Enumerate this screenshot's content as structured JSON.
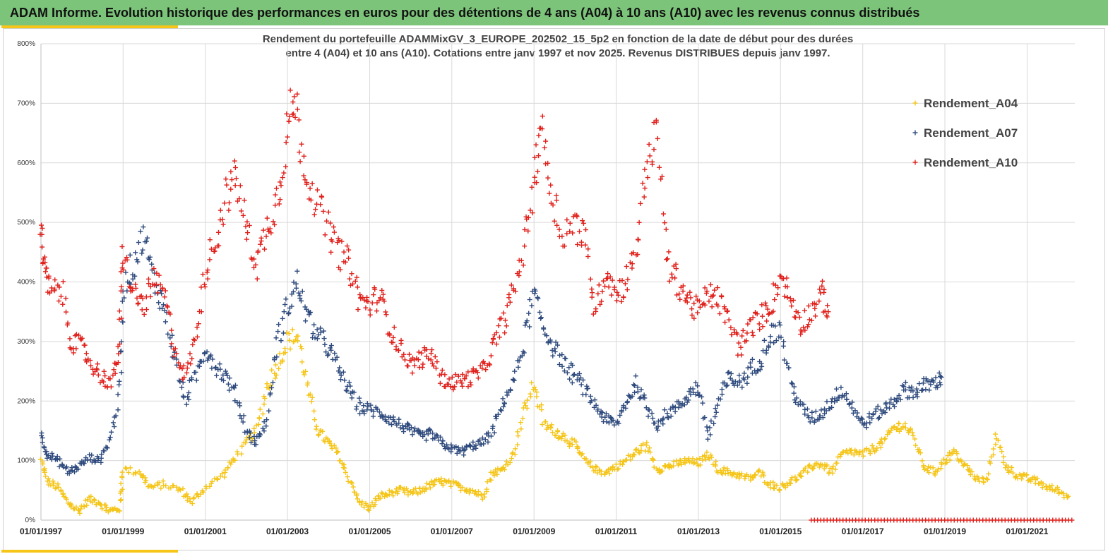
{
  "banner": {
    "title": "ADAM Informe. Evolution historique des performances en euros pour des détentions de 4 ans (A04) à 10 ans (A10) avec les revenus connus distribués"
  },
  "chart_data": {
    "type": "scatter",
    "title_line1": "Rendement du portefeuille ADAMMixGV_3_EUROPE_202502_15_5p2  en fonction de la date de début pour des durées",
    "title_line2": "entre 4 (A04) et 10 ans (A10). Cotations entre janv 1997 et nov 2025. Revenus DISTRIBUES depuis janv 1997.",
    "ylim": [
      0,
      800
    ],
    "y_ticks": [
      "0%",
      "100%",
      "200%",
      "300%",
      "400%",
      "500%",
      "600%",
      "700%",
      "800%"
    ],
    "x_ticks": [
      "01/01/1997",
      "01/01/1999",
      "01/01/2001",
      "01/01/2003",
      "01/01/2005",
      "01/01/2007",
      "01/01/2009",
      "01/01/2011",
      "01/01/2013",
      "01/01/2015",
      "01/01/2017",
      "01/01/2019",
      "01/01/2021"
    ],
    "xlim": [
      "1997-01-01",
      "2022-03-01"
    ],
    "grid": true,
    "legend_position": "top-right",
    "series": [
      {
        "name": "Rendement_A04",
        "color": "#f5c518",
        "points": [
          [
            "1997-01",
            100
          ],
          [
            "1997-03",
            65
          ],
          [
            "1997-06",
            55
          ],
          [
            "1997-09",
            30
          ],
          [
            "1997-12",
            15
          ],
          [
            "1998-03",
            35
          ],
          [
            "1998-06",
            30
          ],
          [
            "1998-09",
            15
          ],
          [
            "1998-12",
            20
          ],
          [
            "1999-01",
            85
          ],
          [
            "1999-06",
            80
          ],
          [
            "1999-09",
            55
          ],
          [
            "2000-01",
            60
          ],
          [
            "2000-06",
            50
          ],
          [
            "2000-09",
            30
          ],
          [
            "2001-01",
            55
          ],
          [
            "2001-06",
            75
          ],
          [
            "2001-09",
            100
          ],
          [
            "2002-01",
            130
          ],
          [
            "2002-04",
            150
          ],
          [
            "2002-07",
            220
          ],
          [
            "2002-10",
            260
          ],
          [
            "2003-01",
            300
          ],
          [
            "2003-04",
            310
          ],
          [
            "2003-07",
            220
          ],
          [
            "2003-10",
            150
          ],
          [
            "2004-01",
            130
          ],
          [
            "2004-04",
            110
          ],
          [
            "2004-07",
            70
          ],
          [
            "2004-10",
            30
          ],
          [
            "2005-01",
            20
          ],
          [
            "2005-04",
            40
          ],
          [
            "2005-07",
            45
          ],
          [
            "2005-10",
            50
          ],
          [
            "2006-01",
            45
          ],
          [
            "2006-04",
            50
          ],
          [
            "2006-07",
            60
          ],
          [
            "2006-10",
            65
          ],
          [
            "2007-01",
            60
          ],
          [
            "2007-04",
            55
          ],
          [
            "2007-07",
            50
          ],
          [
            "2007-10",
            40
          ],
          [
            "2008-01",
            80
          ],
          [
            "2008-04",
            85
          ],
          [
            "2008-07",
            110
          ],
          [
            "2008-10",
            180
          ],
          [
            "2009-01",
            230
          ],
          [
            "2009-04",
            160
          ],
          [
            "2009-07",
            150
          ],
          [
            "2009-10",
            140
          ],
          [
            "2010-01",
            125
          ],
          [
            "2010-04",
            100
          ],
          [
            "2010-07",
            85
          ],
          [
            "2010-10",
            80
          ],
          [
            "2011-01",
            90
          ],
          [
            "2011-04",
            100
          ],
          [
            "2011-07",
            115
          ],
          [
            "2011-10",
            125
          ],
          [
            "2012-01",
            85
          ],
          [
            "2012-04",
            90
          ],
          [
            "2012-07",
            95
          ],
          [
            "2012-10",
            100
          ],
          [
            "2013-01",
            95
          ],
          [
            "2013-04",
            110
          ],
          [
            "2013-07",
            85
          ],
          [
            "2013-10",
            80
          ],
          [
            "2014-01",
            75
          ],
          [
            "2014-04",
            70
          ],
          [
            "2014-07",
            80
          ],
          [
            "2014-10",
            60
          ],
          [
            "2015-01",
            55
          ],
          [
            "2015-04",
            65
          ],
          [
            "2015-07",
            75
          ],
          [
            "2015-10",
            90
          ],
          [
            "2016-01",
            95
          ],
          [
            "2016-04",
            80
          ],
          [
            "2016-07",
            110
          ],
          [
            "2016-10",
            115
          ],
          [
            "2017-01",
            110
          ],
          [
            "2017-04",
            120
          ],
          [
            "2017-07",
            130
          ],
          [
            "2017-10",
            155
          ],
          [
            "2018-01",
            160
          ],
          [
            "2018-04",
            140
          ],
          [
            "2018-07",
            90
          ],
          [
            "2018-10",
            80
          ],
          [
            "2019-01",
            100
          ],
          [
            "2019-04",
            115
          ],
          [
            "2019-07",
            90
          ],
          [
            "2019-10",
            70
          ],
          [
            "2020-01",
            65
          ],
          [
            "2020-04",
            140
          ],
          [
            "2020-07",
            90
          ],
          [
            "2020-10",
            75
          ],
          [
            "2021-01",
            70
          ],
          [
            "2021-04",
            65
          ],
          [
            "2021-07",
            55
          ],
          [
            "2021-10",
            50
          ],
          [
            "2022-01",
            40
          ]
        ]
      },
      {
        "name": "Rendement_A07",
        "color": "#2e4a7d",
        "points": [
          [
            "1997-01",
            145
          ],
          [
            "1997-03",
            110
          ],
          [
            "1997-06",
            100
          ],
          [
            "1997-09",
            80
          ],
          [
            "1997-12",
            90
          ],
          [
            "1998-03",
            105
          ],
          [
            "1998-06",
            100
          ],
          [
            "1998-09",
            130
          ],
          [
            "1998-12",
            210
          ],
          [
            "1999-01",
            390
          ],
          [
            "1999-04",
            430
          ],
          [
            "1999-07",
            480
          ],
          [
            "1999-10",
            400
          ],
          [
            "2000-01",
            360
          ],
          [
            "2000-04",
            280
          ],
          [
            "2000-07",
            200
          ],
          [
            "2000-10",
            240
          ],
          [
            "2001-01",
            290
          ],
          [
            "2001-04",
            260
          ],
          [
            "2001-07",
            240
          ],
          [
            "2001-10",
            210
          ],
          [
            "2002-01",
            150
          ],
          [
            "2002-04",
            130
          ],
          [
            "2002-07",
            170
          ],
          [
            "2002-10",
            300
          ],
          [
            "2003-01",
            360
          ],
          [
            "2003-04",
            400
          ],
          [
            "2003-07",
            340
          ],
          [
            "2003-10",
            310
          ],
          [
            "2004-01",
            290
          ],
          [
            "2004-04",
            250
          ],
          [
            "2004-07",
            220
          ],
          [
            "2004-10",
            190
          ],
          [
            "2005-01",
            185
          ],
          [
            "2005-04",
            180
          ],
          [
            "2005-07",
            170
          ],
          [
            "2005-10",
            160
          ],
          [
            "2006-01",
            150
          ],
          [
            "2006-04",
            140
          ],
          [
            "2006-07",
            145
          ],
          [
            "2006-10",
            130
          ],
          [
            "2007-01",
            120
          ],
          [
            "2007-04",
            115
          ],
          [
            "2007-07",
            125
          ],
          [
            "2007-10",
            130
          ],
          [
            "2008-01",
            150
          ],
          [
            "2008-04",
            200
          ],
          [
            "2008-07",
            230
          ],
          [
            "2008-10",
            300
          ],
          [
            "2009-01",
            380
          ],
          [
            "2009-04",
            320
          ],
          [
            "2009-07",
            290
          ],
          [
            "2009-10",
            260
          ],
          [
            "2010-01",
            240
          ],
          [
            "2010-04",
            220
          ],
          [
            "2010-07",
            190
          ],
          [
            "2010-10",
            170
          ],
          [
            "2011-01",
            160
          ],
          [
            "2011-04",
            200
          ],
          [
            "2011-07",
            230
          ],
          [
            "2011-10",
            190
          ],
          [
            "2012-01",
            160
          ],
          [
            "2012-04",
            180
          ],
          [
            "2012-07",
            190
          ],
          [
            "2012-10",
            210
          ],
          [
            "2013-01",
            225
          ],
          [
            "2013-04",
            140
          ],
          [
            "2013-07",
            200
          ],
          [
            "2013-10",
            240
          ],
          [
            "2014-01",
            230
          ],
          [
            "2014-04",
            250
          ],
          [
            "2014-07",
            270
          ],
          [
            "2014-10",
            310
          ],
          [
            "2015-01",
            320
          ],
          [
            "2015-04",
            230
          ],
          [
            "2015-07",
            190
          ],
          [
            "2015-10",
            170
          ],
          [
            "2016-01",
            180
          ],
          [
            "2016-04",
            200
          ],
          [
            "2016-07",
            220
          ],
          [
            "2016-10",
            190
          ],
          [
            "2017-01",
            160
          ],
          [
            "2017-04",
            175
          ],
          [
            "2017-07",
            185
          ],
          [
            "2017-10",
            200
          ],
          [
            "2018-01",
            220
          ],
          [
            "2018-04",
            215
          ],
          [
            "2018-07",
            225
          ],
          [
            "2018-10",
            230
          ],
          [
            "2018-12",
            240
          ]
        ]
      },
      {
        "name": "Rendement_A10",
        "color": "#e0201b",
        "points": [
          [
            "1997-01",
            500
          ],
          [
            "1997-02",
            420
          ],
          [
            "1997-04",
            380
          ],
          [
            "1997-07",
            390
          ],
          [
            "1997-10",
            300
          ],
          [
            "1998-01",
            290
          ],
          [
            "1998-04",
            260
          ],
          [
            "1998-07",
            240
          ],
          [
            "1998-10",
            230
          ],
          [
            "1998-12",
            300
          ],
          [
            "1999-01",
            450
          ],
          [
            "1999-04",
            380
          ],
          [
            "1999-07",
            360
          ],
          [
            "1999-10",
            400
          ],
          [
            "2000-01",
            380
          ],
          [
            "2000-04",
            290
          ],
          [
            "2000-07",
            240
          ],
          [
            "2000-10",
            300
          ],
          [
            "2001-01",
            420
          ],
          [
            "2001-04",
            470
          ],
          [
            "2001-07",
            540
          ],
          [
            "2001-10",
            580
          ],
          [
            "2002-01",
            490
          ],
          [
            "2002-04",
            430
          ],
          [
            "2002-07",
            490
          ],
          [
            "2002-10",
            540
          ],
          [
            "2003-01",
            650
          ],
          [
            "2003-03",
            710
          ],
          [
            "2003-06",
            600
          ],
          [
            "2003-09",
            540
          ],
          [
            "2004-01",
            490
          ],
          [
            "2004-04",
            450
          ],
          [
            "2004-07",
            430
          ],
          [
            "2004-10",
            370
          ],
          [
            "2005-01",
            360
          ],
          [
            "2005-04",
            380
          ],
          [
            "2005-07",
            320
          ],
          [
            "2005-10",
            290
          ],
          [
            "2006-01",
            260
          ],
          [
            "2006-04",
            270
          ],
          [
            "2006-07",
            280
          ],
          [
            "2006-10",
            240
          ],
          [
            "2007-01",
            230
          ],
          [
            "2007-04",
            235
          ],
          [
            "2007-07",
            240
          ],
          [
            "2007-10",
            250
          ],
          [
            "2008-01",
            290
          ],
          [
            "2008-04",
            330
          ],
          [
            "2008-07",
            380
          ],
          [
            "2008-10",
            460
          ],
          [
            "2009-01",
            560
          ],
          [
            "2009-03",
            670
          ],
          [
            "2009-06",
            560
          ],
          [
            "2009-09",
            480
          ],
          [
            "2010-01",
            500
          ],
          [
            "2010-04",
            470
          ],
          [
            "2010-07",
            350
          ],
          [
            "2010-10",
            420
          ],
          [
            "2011-01",
            380
          ],
          [
            "2011-04",
            400
          ],
          [
            "2011-07",
            460
          ],
          [
            "2011-10",
            600
          ],
          [
            "2012-01",
            650
          ],
          [
            "2012-04",
            430
          ],
          [
            "2012-07",
            400
          ],
          [
            "2012-10",
            370
          ],
          [
            "2013-01",
            350
          ],
          [
            "2013-04",
            380
          ],
          [
            "2013-07",
            370
          ],
          [
            "2013-10",
            330
          ],
          [
            "2014-01",
            290
          ],
          [
            "2014-04",
            320
          ],
          [
            "2014-07",
            340
          ],
          [
            "2014-10",
            360
          ],
          [
            "2015-01",
            410
          ],
          [
            "2015-04",
            370
          ],
          [
            "2015-07",
            330
          ],
          [
            "2015-10",
            350
          ],
          [
            "2016-01",
            380
          ],
          [
            "2016-03",
            350
          ]
        ]
      }
    ],
    "zero_band": {
      "color": "#e0201b",
      "x_start": "2015-10",
      "x_end": "2022-03",
      "value": 0
    }
  }
}
